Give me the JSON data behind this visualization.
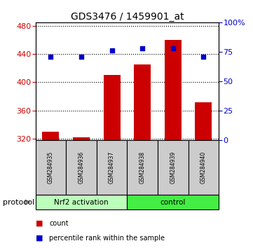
{
  "title": "GDS3476 / 1459901_at",
  "samples": [
    "GSM284935",
    "GSM284936",
    "GSM284937",
    "GSM284938",
    "GSM284939",
    "GSM284940"
  ],
  "counts": [
    330,
    322,
    410,
    425,
    460,
    372
  ],
  "percentiles": [
    71,
    71,
    76,
    78,
    78,
    71
  ],
  "ylim_left": [
    318,
    485
  ],
  "ylim_right": [
    0,
    100
  ],
  "yticks_left": [
    320,
    360,
    400,
    440,
    480
  ],
  "yticks_right": [
    0,
    25,
    50,
    75,
    100
  ],
  "yticklabels_right": [
    "0",
    "25",
    "50",
    "75",
    "100%"
  ],
  "bar_color": "#cc0000",
  "dot_color": "#0000cc",
  "groups": [
    {
      "label": "Nrf2 activation",
      "start": 0,
      "end": 3,
      "color": "#bbffbb"
    },
    {
      "label": "control",
      "start": 3,
      "end": 6,
      "color": "#44ee44"
    }
  ],
  "protocol_label": "protocol",
  "legend_items": [
    {
      "label": "count",
      "color": "#cc0000"
    },
    {
      "label": "percentile rank within the sample",
      "color": "#0000cc"
    }
  ],
  "bar_width": 0.55,
  "group_box_color": "#cccccc",
  "background_color": "#ffffff"
}
